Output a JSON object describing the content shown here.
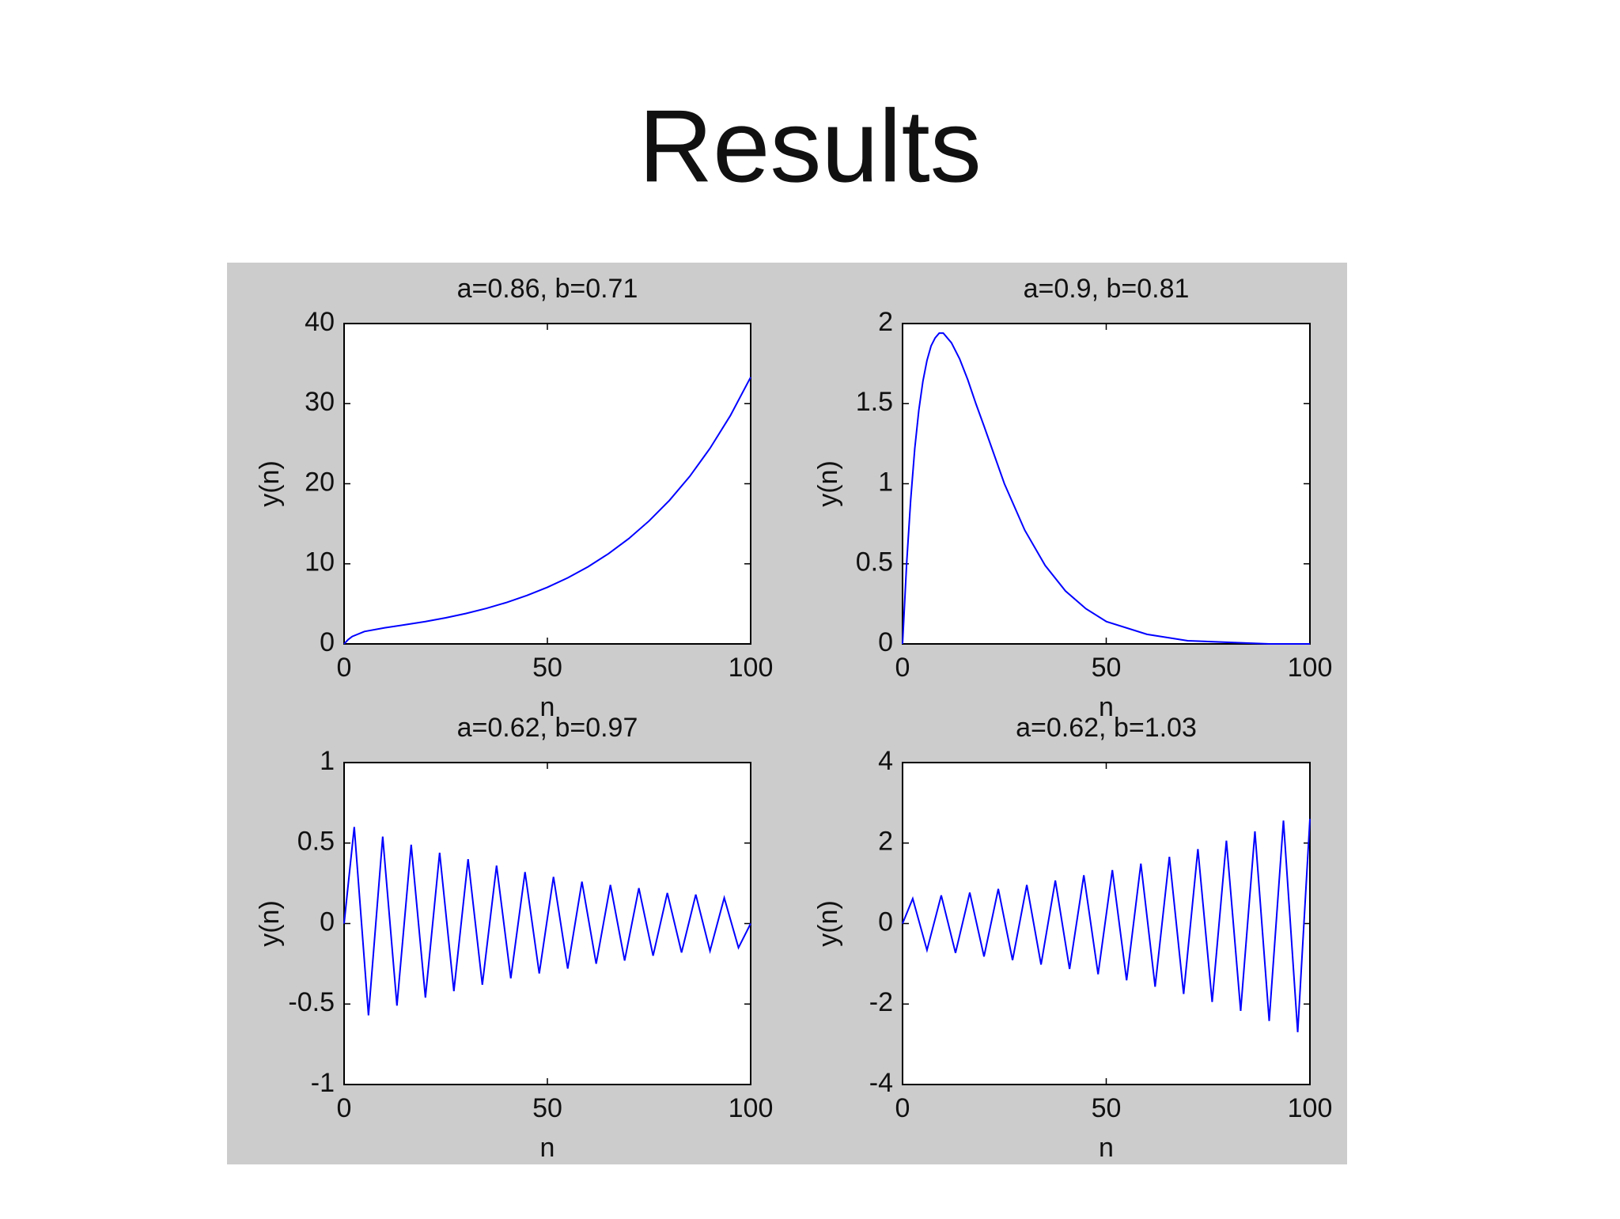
{
  "title": "Results",
  "chart_data": [
    {
      "type": "line",
      "title": "a=0.86, b=0.71",
      "x_label": "n",
      "y_label": "y(n)",
      "color": "#0000ff",
      "x": [
        0,
        1,
        2,
        5,
        10,
        15,
        20,
        25,
        30,
        35,
        40,
        45,
        50,
        55,
        60,
        65,
        70,
        75,
        80,
        85,
        90,
        95,
        100
      ],
      "values": [
        0,
        0.54,
        0.93,
        1.55,
        2.01,
        2.39,
        2.79,
        3.26,
        3.8,
        4.44,
        5.18,
        6.05,
        7.07,
        8.25,
        9.63,
        11.25,
        13.14,
        15.35,
        17.91,
        20.91,
        24.42,
        28.5,
        33.3
      ],
      "xlim": [
        0,
        100
      ],
      "xticks": [
        0,
        50,
        100
      ],
      "ylim": [
        0,
        40
      ],
      "yticks": [
        0,
        10,
        20,
        30,
        40
      ]
    },
    {
      "type": "line",
      "title": "a=0.9, b=0.81",
      "x_label": "n",
      "y_label": "y(n)",
      "color": "#0000ff",
      "x": [
        0,
        1,
        2,
        3,
        4,
        5,
        6,
        7,
        8,
        9,
        10,
        12,
        14,
        16,
        18,
        20,
        25,
        30,
        35,
        40,
        45,
        50,
        60,
        70,
        80,
        90,
        100
      ],
      "values": [
        0,
        0.5,
        0.9,
        1.22,
        1.46,
        1.64,
        1.77,
        1.86,
        1.91,
        1.94,
        1.94,
        1.88,
        1.78,
        1.65,
        1.5,
        1.36,
        1.0,
        0.71,
        0.49,
        0.33,
        0.22,
        0.14,
        0.06,
        0.02,
        0.01,
        0.0,
        0.0
      ],
      "xlim": [
        0,
        100
      ],
      "xticks": [
        0,
        50,
        100
      ],
      "ylim": [
        0,
        2
      ],
      "yticks": [
        0,
        0.5,
        1,
        1.5,
        2
      ]
    },
    {
      "type": "line",
      "title": "a=0.62, b=0.97",
      "x_label": "n",
      "y_label": "y(n)",
      "color": "#0000ff",
      "x": [
        0,
        2.5,
        6,
        9.5,
        13,
        16.5,
        20,
        23.5,
        27,
        30.5,
        34,
        37.5,
        41,
        44.5,
        48,
        51.5,
        55,
        58.5,
        62,
        65.5,
        69,
        72.5,
        76,
        79.5,
        83,
        86.5,
        90,
        93.5,
        97,
        100
      ],
      "values": [
        0,
        0.6,
        -0.57,
        0.54,
        -0.51,
        0.49,
        -0.46,
        0.44,
        -0.42,
        0.4,
        -0.38,
        0.36,
        -0.34,
        0.32,
        -0.31,
        0.29,
        -0.28,
        0.26,
        -0.25,
        0.24,
        -0.23,
        0.22,
        -0.2,
        0.19,
        -0.18,
        0.18,
        -0.17,
        0.16,
        -0.15,
        0.0
      ],
      "xlim": [
        0,
        100
      ],
      "xticks": [
        0,
        50,
        100
      ],
      "ylim": [
        -1,
        1
      ],
      "yticks": [
        -1,
        -0.5,
        0,
        0.5,
        1
      ]
    },
    {
      "type": "line",
      "title": "a=0.62, b=1.03",
      "x_label": "n",
      "y_label": "y(n)",
      "color": "#0000ff",
      "x": [
        0,
        2.5,
        6,
        9.5,
        13,
        16.5,
        20,
        23.5,
        27,
        30.5,
        34,
        37.5,
        41,
        44.5,
        48,
        51.5,
        55,
        58.5,
        62,
        65.5,
        69,
        72.5,
        76,
        79.5,
        83,
        86.5,
        90,
        93.5,
        97,
        100
      ],
      "values": [
        0,
        0.62,
        -0.66,
        0.7,
        -0.73,
        0.77,
        -0.82,
        0.86,
        -0.91,
        0.96,
        -1.02,
        1.07,
        -1.13,
        1.2,
        -1.26,
        1.33,
        -1.41,
        1.49,
        -1.57,
        1.66,
        -1.75,
        1.85,
        -1.95,
        2.06,
        -2.17,
        2.29,
        -2.42,
        2.56,
        -2.7,
        2.6
      ],
      "xlim": [
        0,
        100
      ],
      "xticks": [
        0,
        50,
        100
      ],
      "ylim": [
        -4,
        4
      ],
      "yticks": [
        -4,
        -2,
        0,
        2,
        4
      ]
    }
  ]
}
